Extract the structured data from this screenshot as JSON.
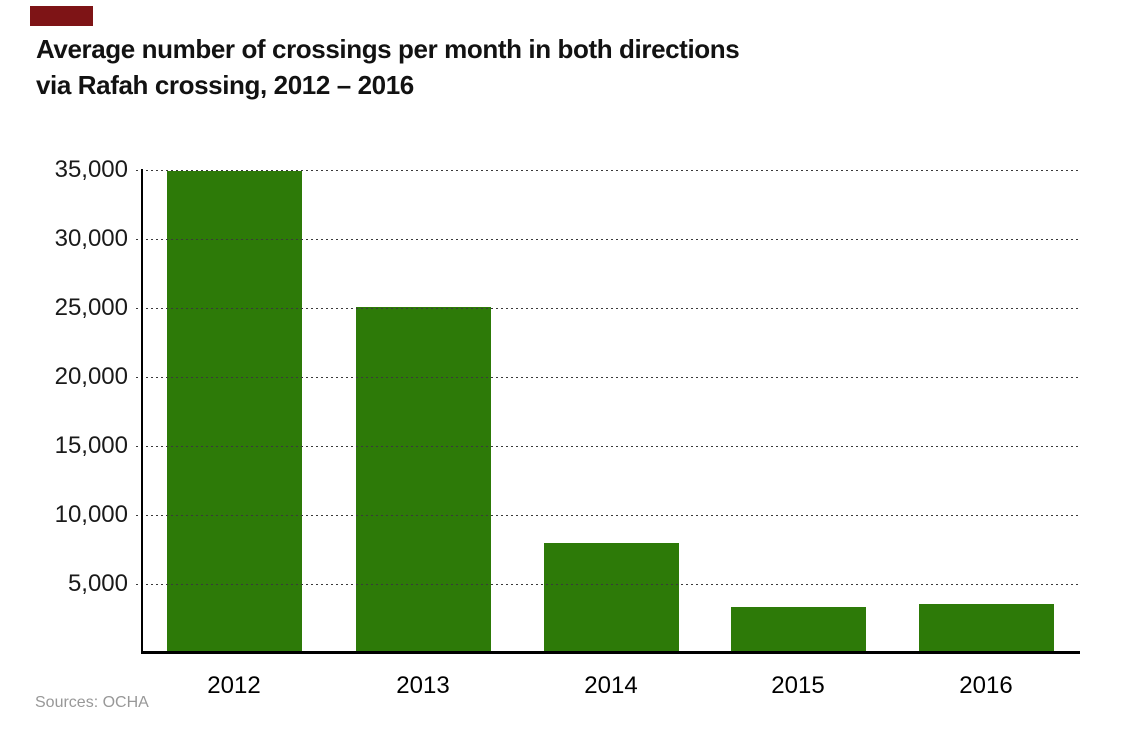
{
  "title": {
    "line1": "Average number of crossings per month in both directions",
    "line2": "via Rafah crossing, 2012 – 2016"
  },
  "source": "Sources: OCHA",
  "colors": {
    "bar": "#2d7a08",
    "brand_mark": "#7e1416",
    "grid": "#3a3a3a",
    "axis": "#000000",
    "title_text": "#121212",
    "source_text": "#989898"
  },
  "chart_data": {
    "type": "bar",
    "title": "Average number of crossings per month in both directions via Rafah crossing, 2012 – 2016",
    "categories": [
      "2012",
      "2013",
      "2014",
      "2015",
      "2016"
    ],
    "values": [
      34900,
      25100,
      8000,
      3300,
      3550
    ],
    "xlabel": "",
    "ylabel": "",
    "ylim": [
      0,
      35000
    ],
    "ytick_interval": 5000,
    "ytick_labels": [
      "5,000",
      "10,000",
      "15,000",
      "20,000",
      "25,000",
      "30,000",
      "35,000"
    ],
    "grid": "horizontal-dashed",
    "legend": "none",
    "bar_color": "#2d7a08"
  }
}
